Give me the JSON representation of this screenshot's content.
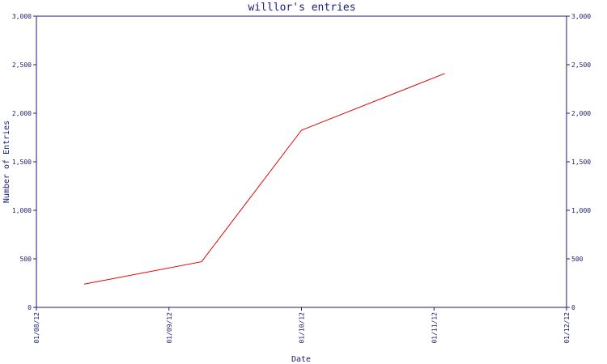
{
  "chart_data": {
    "type": "line",
    "title": "willlor's entries",
    "xlabel": "Date",
    "ylabel": "Number of Entries",
    "x_ticks": [
      "01/08/12",
      "01/09/12",
      "01/10/12",
      "01/11/12",
      "01/12/12"
    ],
    "y_ticks": [
      "0",
      "500",
      "1,000",
      "1,500",
      "2,000",
      "2,500",
      "3,000"
    ],
    "ylim": [
      0,
      3000
    ],
    "xlim": [
      "2012-08-01",
      "2012-12-01"
    ],
    "grid": false,
    "series": [
      {
        "color": "#e00000",
        "points": [
          {
            "x": "2012-08-12",
            "y": 240
          },
          {
            "x": "2012-09-08",
            "y": 470
          },
          {
            "x": "2012-10-01",
            "y": 1825
          },
          {
            "x": "2012-11-03",
            "y": 2410
          }
        ]
      }
    ],
    "colors": {
      "axis": "#1a1a6e",
      "title": "#1a1a8c",
      "line": "#e00000"
    }
  }
}
